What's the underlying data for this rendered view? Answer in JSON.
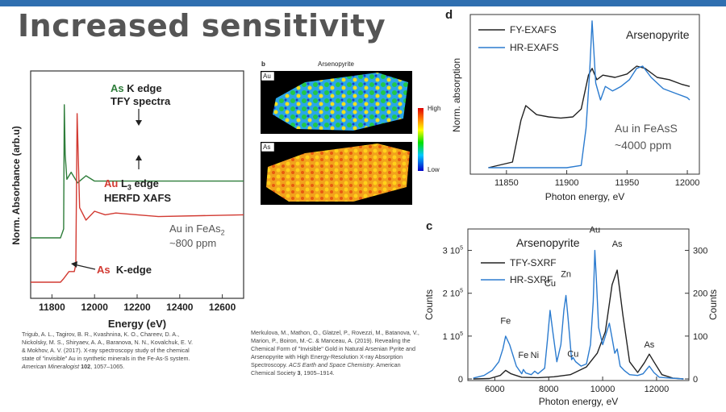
{
  "slide": {
    "title": "Increased sensitivity",
    "accent_color": "#2f6fb0"
  },
  "references": {
    "left": {
      "text": "Trigub, A. L., Tagirov, B. R., Kvashnina, K. O., Chareev, D. A., Nickolsky, M. S., Shiryaev, A. A., Baranova, N. N., Kovalchuk, E. V. & Mokhov, A. V. (2017). X-ray spectroscopy study of the chemical state of \"invisible\" Au in synthetic minerals in the Fe-As-S system.",
      "journal": "American Mineralogist",
      "volume": "102",
      "pages": ", 1057–1065."
    },
    "middle": {
      "text": "Merkulova, M., Mathon, O., Glatzel, P., Rovezzi, M., Batanova, V., Marion, P., Boiron, M.-C. & Manceau, A. (2019). Revealing the Chemical Form of \"Invisible\" Gold in Natural Arsenian Pyrite and Arsenopyrite with High Energy-Resolution X-ray Absorption Spectroscopy.",
      "journal": "ACS Earth and Space Chemistry",
      "tail": ". American Chemical Society",
      "volume": "3",
      "pages": ", 1905–1914."
    }
  },
  "chart_data": [
    {
      "type": "line",
      "panel": "left",
      "xlabel": "Energy (eV)",
      "ylabel": "Norm. Absorbance (arb.u)",
      "xlim": [
        11700,
        12700
      ],
      "xticks": [
        "11800",
        "12000",
        "12200",
        "12400",
        "12600"
      ],
      "annotations": {
        "as_k_tfy_1": "As",
        "as_k_tfy_2": " K edge",
        "as_k_tfy_3": "TFY spectra",
        "au_l3_1": "Au",
        "au_l3_2": " L",
        "au_l3_sub": "3",
        "au_l3_3": " edge",
        "au_l3_4": "HERFD XAFS",
        "au_in_1": "Au in FeAs",
        "au_in_sub": "2",
        "au_in_2": "~800 ppm",
        "as_kedge_1": "As",
        "as_kedge_2": "K-edge"
      },
      "series": [
        {
          "color": "#2e7d3a",
          "x": [
            11700,
            11840,
            11855,
            11858,
            11862,
            11870,
            11890,
            11920,
            11960,
            12000,
            12100,
            12200,
            12700
          ],
          "y": [
            0.25,
            0.25,
            0.3,
            1.0,
            0.72,
            0.58,
            0.62,
            0.56,
            0.6,
            0.57,
            0.57,
            0.57,
            0.57
          ]
        },
        {
          "color": "#d23a32",
          "x": [
            11700,
            11840,
            11855,
            11880,
            11905,
            11912,
            11918,
            11930,
            11960,
            12000,
            12050,
            12100,
            12200,
            12300,
            12700
          ],
          "y": [
            0.0,
            0.0,
            0.02,
            0.06,
            0.06,
            0.1,
            0.95,
            0.42,
            0.35,
            0.4,
            0.38,
            0.39,
            0.38,
            0.37,
            0.38
          ]
        }
      ]
    },
    {
      "type": "heatmap",
      "panel": "b",
      "panel_label": "b",
      "title": "Arsenopyrite",
      "maps": [
        "Au",
        "As"
      ],
      "colorbar": {
        "max_label": "High",
        "min_label": "Low",
        "colors": [
          "#0000c8",
          "#00c8ff",
          "#00e000",
          "#ffff00",
          "#ff8000",
          "#e00000"
        ]
      }
    },
    {
      "type": "line",
      "panel": "d",
      "panel_label": "d",
      "title": "Arsenopyrite",
      "xlabel": "Photon energy, eV",
      "ylabel": "Norm. absorption",
      "xlim": [
        11820,
        12010
      ],
      "xticks": [
        "11850",
        "11900",
        "11950",
        "12000"
      ],
      "annotation_1": "Au in FeAsS",
      "annotation_2": "~4000 ppm",
      "series": [
        {
          "name": "FY-EXAFS",
          "color": "#222222",
          "x": [
            11835,
            11855,
            11862,
            11866,
            11875,
            11885,
            11895,
            11905,
            11912,
            11918,
            11921,
            11925,
            11930,
            11940,
            11950,
            11958,
            11965,
            11975,
            11985,
            11995,
            12002
          ],
          "y": [
            0.0,
            0.05,
            0.42,
            0.55,
            0.47,
            0.45,
            0.44,
            0.45,
            0.52,
            0.82,
            0.88,
            0.78,
            0.82,
            0.8,
            0.83,
            0.9,
            0.88,
            0.8,
            0.78,
            0.74,
            0.72
          ]
        },
        {
          "name": "HR-EXAFS",
          "color": "#2b7bcf",
          "x": [
            11835,
            11900,
            11912,
            11916,
            11919,
            11921,
            11924,
            11928,
            11932,
            11938,
            11945,
            11952,
            11958,
            11963,
            11970,
            11980,
            11990,
            12000,
            12002
          ],
          "y": [
            0.0,
            0.0,
            0.02,
            0.35,
            0.85,
            1.3,
            0.75,
            0.6,
            0.72,
            0.68,
            0.72,
            0.78,
            0.88,
            0.9,
            0.8,
            0.7,
            0.66,
            0.62,
            0.6
          ]
        }
      ]
    },
    {
      "type": "line",
      "panel": "c",
      "panel_label": "c",
      "title": "Arsenopyrite",
      "xlabel": "Photon energy, eV",
      "ylabel_left": "Counts",
      "ylabel_right": "Counts",
      "xlim": [
        5000,
        13200
      ],
      "xticks": [
        "6000",
        "8000",
        "10000",
        "12000"
      ],
      "yticks_left": [
        "0",
        "1 10",
        "2 10",
        "3 10"
      ],
      "ytick_exp": "5",
      "ylim_left": [
        0,
        350000
      ],
      "yticks_right": [
        "0",
        "100",
        "200",
        "300"
      ],
      "ylim_right": [
        0,
        350
      ],
      "peak_labels": [
        {
          "text": "Fe",
          "x": 6400,
          "y": 125
        },
        {
          "text": "Fe",
          "x": 7060,
          "y": 45
        },
        {
          "text": "Ni",
          "x": 7480,
          "y": 45
        },
        {
          "text": "Cu",
          "x": 8050,
          "y": 213
        },
        {
          "text": "Zn",
          "x": 8640,
          "y": 234
        },
        {
          "text": "Cu",
          "x": 8900,
          "y": 48
        },
        {
          "text": "Au",
          "x": 9710,
          "y": 338
        },
        {
          "text": "As",
          "x": 10540,
          "y": 305
        },
        {
          "text": "As",
          "x": 11730,
          "y": 70
        }
      ],
      "series": [
        {
          "name": "TFY-SXRF",
          "color": "#222222",
          "x": [
            5200,
            5800,
            6200,
            6400,
            6600,
            7000,
            7600,
            8200,
            8800,
            9400,
            9800,
            10100,
            10350,
            10540,
            10750,
            11000,
            11300,
            11550,
            11730,
            11900,
            12200,
            12600,
            13000
          ],
          "y": [
            0,
            1,
            8,
            20,
            12,
            4,
            3,
            5,
            10,
            28,
            60,
            110,
            220,
            254,
            150,
            40,
            15,
            38,
            58,
            40,
            10,
            2,
            0
          ]
        },
        {
          "name": "HR-SXRF",
          "color": "#2b7bcf",
          "x": [
            5200,
            5600,
            5900,
            6150,
            6300,
            6400,
            6550,
            6800,
            7000,
            7060,
            7150,
            7350,
            7480,
            7600,
            7850,
            7950,
            8050,
            8150,
            8300,
            8450,
            8560,
            8640,
            8720,
            8850,
            8900,
            9000,
            9200,
            9400,
            9550,
            9650,
            9710,
            9760,
            9850,
            10000,
            10150,
            10250,
            10350,
            10450,
            10540,
            10650,
            10800,
            11000,
            11300,
            11500,
            11730,
            11900,
            12100,
            12500,
            13000
          ],
          "y": [
            2,
            8,
            20,
            40,
            70,
            100,
            80,
            30,
            12,
            22,
            14,
            10,
            18,
            12,
            25,
            90,
            160,
            110,
            40,
            80,
            160,
            195,
            140,
            45,
            50,
            40,
            30,
            35,
            80,
            180,
            300,
            240,
            120,
            80,
            110,
            130,
            95,
            60,
            70,
            30,
            20,
            10,
            8,
            12,
            30,
            15,
            4,
            2,
            0
          ]
        }
      ]
    }
  ]
}
